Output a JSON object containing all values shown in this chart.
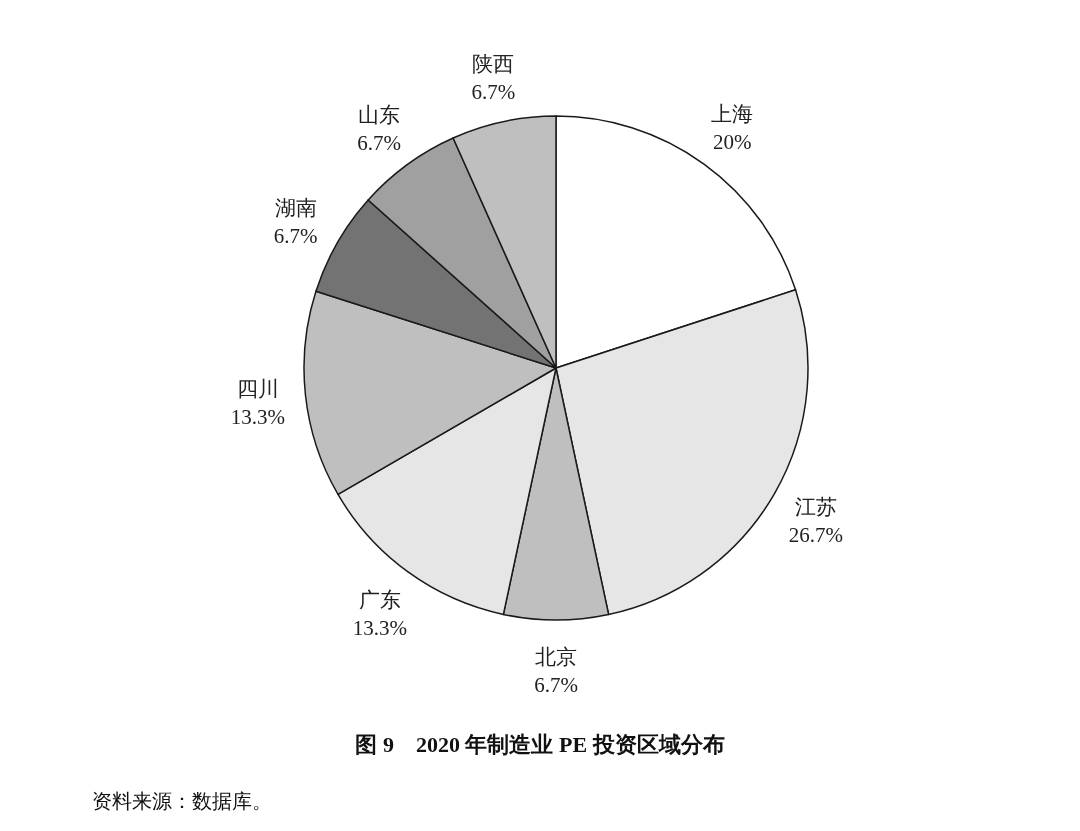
{
  "chart_data": {
    "type": "pie",
    "title": "图 9　2020 年制造业 PE 投资区域分布",
    "annotations": [
      "资料来源：数据库。"
    ],
    "categories": [
      "上海",
      "江苏",
      "北京",
      "广东",
      "四川",
      "湖南",
      "山东",
      "陕西"
    ],
    "values": [
      20,
      26.7,
      6.7,
      13.3,
      13.3,
      6.7,
      6.7,
      6.7
    ],
    "value_labels": [
      "20%",
      "26.7%",
      "6.7%",
      "13.3%",
      "13.3%",
      "6.7%",
      "6.7%",
      "6.7%"
    ],
    "colors": [
      "#ffffff",
      "#e6e6e6",
      "#bfbfbf",
      "#e6e6e6",
      "#bfbfbf",
      "#737373",
      "#a0a0a0",
      "#bfbfbf"
    ]
  }
}
